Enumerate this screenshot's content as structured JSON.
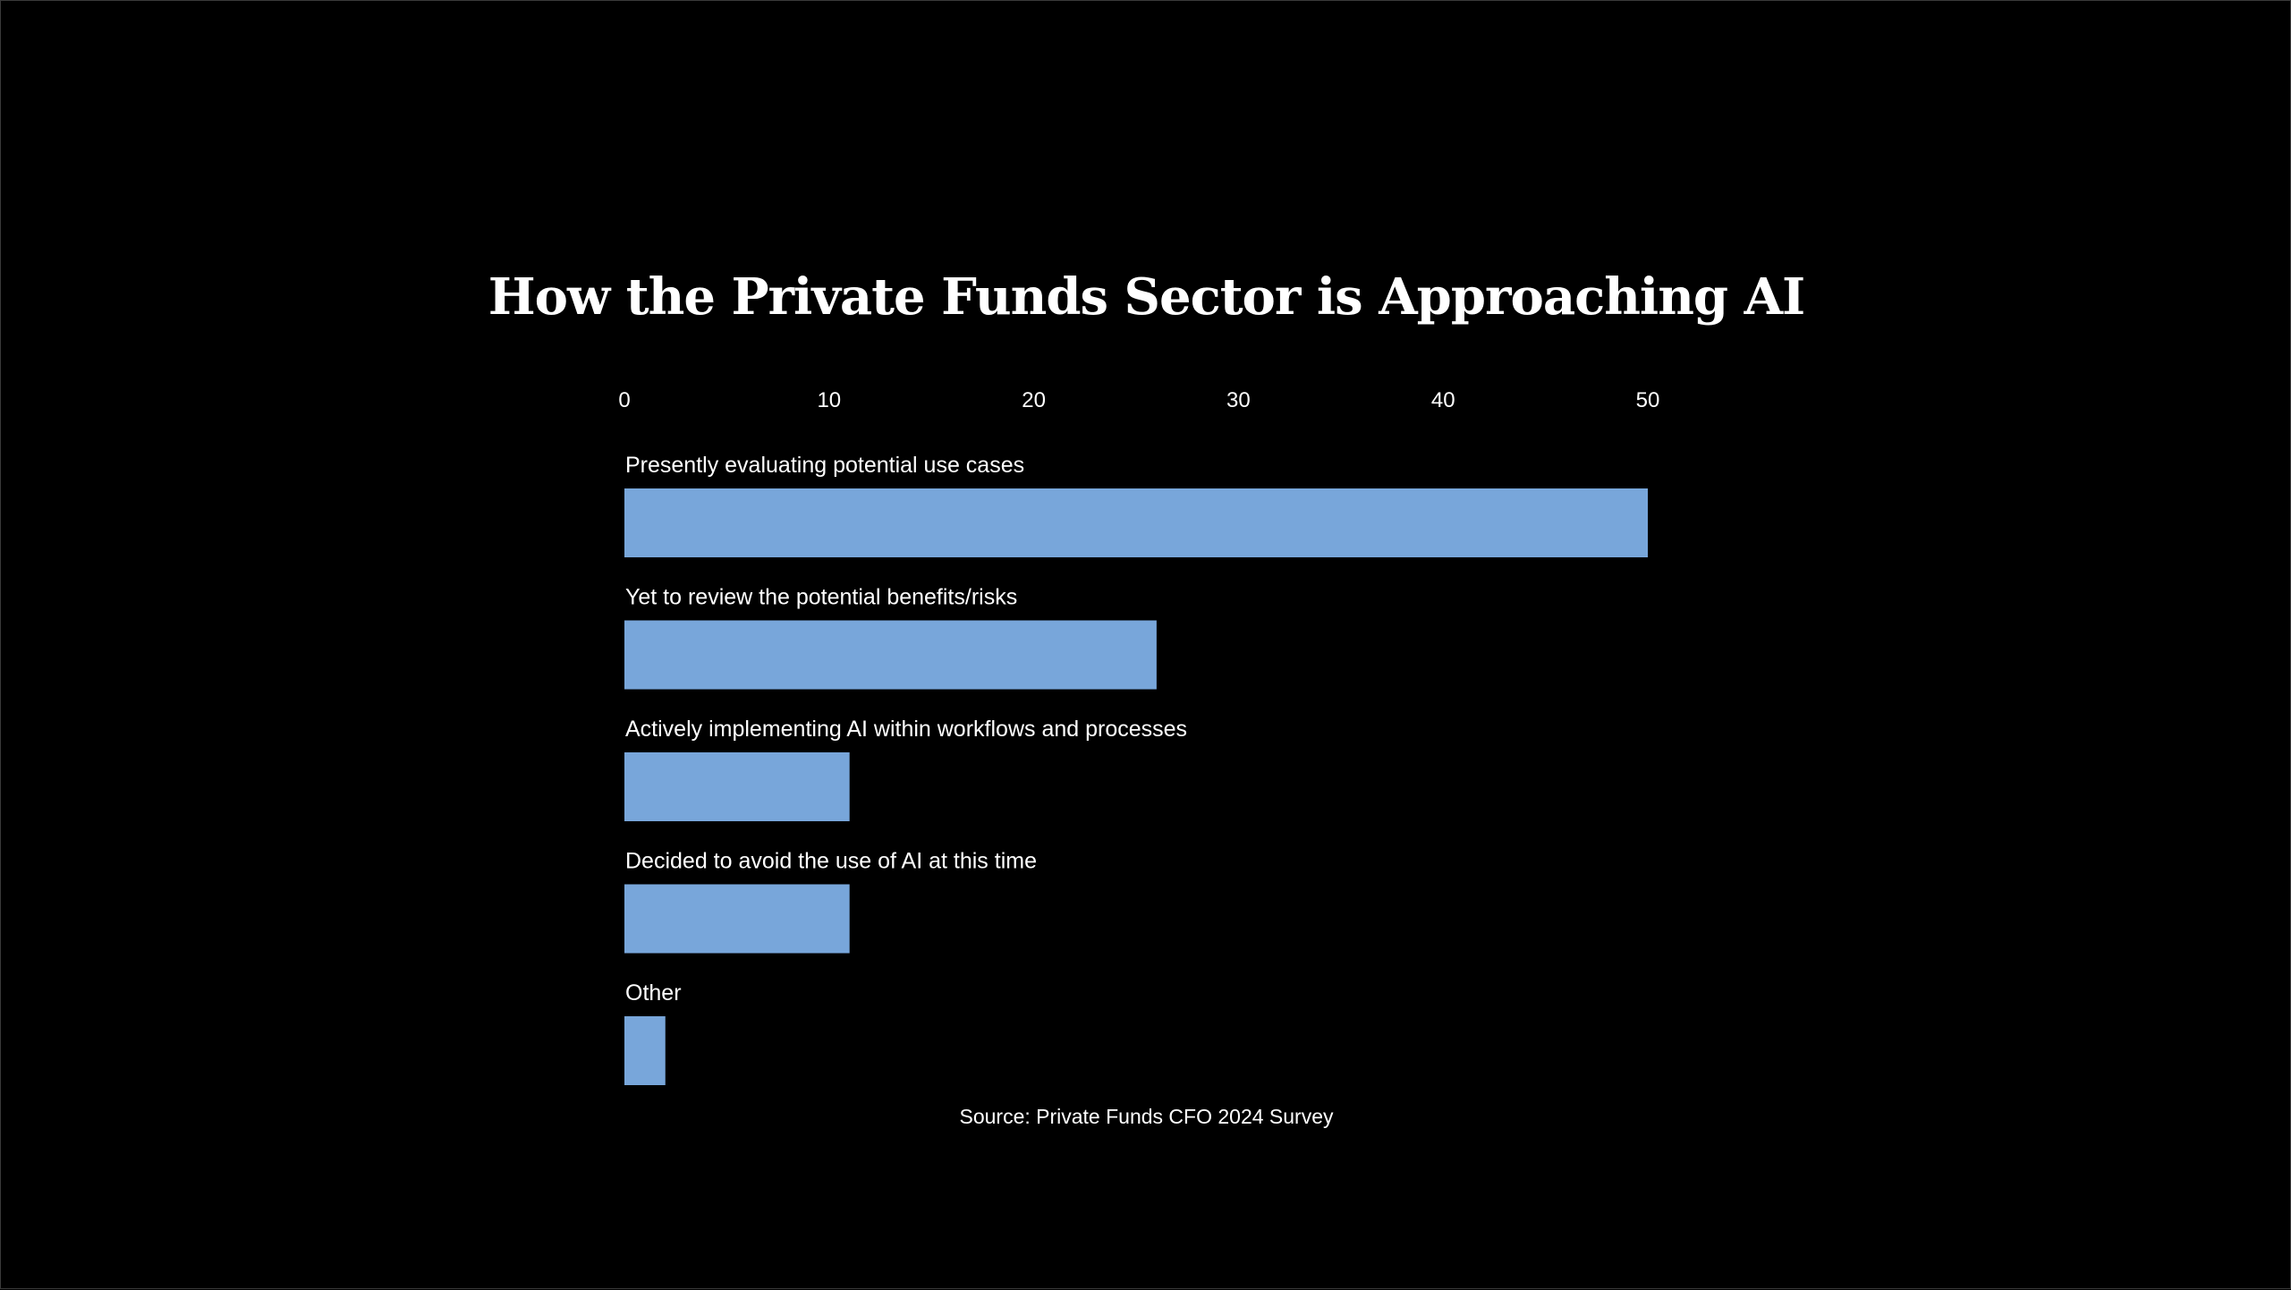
{
  "colors": {
    "background": "#000000",
    "bar": "#78a6da",
    "text": "#ffffff"
  },
  "chart_data": {
    "type": "bar",
    "orientation": "horizontal",
    "title": "How the Private Funds Sector is Approaching AI",
    "categories": [
      "Presently evaluating potential use cases",
      "Yet to review the potential benefits/risks",
      "Actively implementing AI within workflows and processes",
      "Decided to avoid the use of AI at this time",
      "Other"
    ],
    "values": [
      50,
      26,
      11,
      11,
      2
    ],
    "xlim": [
      0,
      50
    ],
    "xticks": [
      0,
      10,
      20,
      30,
      40,
      50
    ],
    "xlabel": "",
    "ylabel": "",
    "grid": false,
    "axis_position": "top",
    "source": "Source: Private Funds CFO 2024 Survey"
  }
}
